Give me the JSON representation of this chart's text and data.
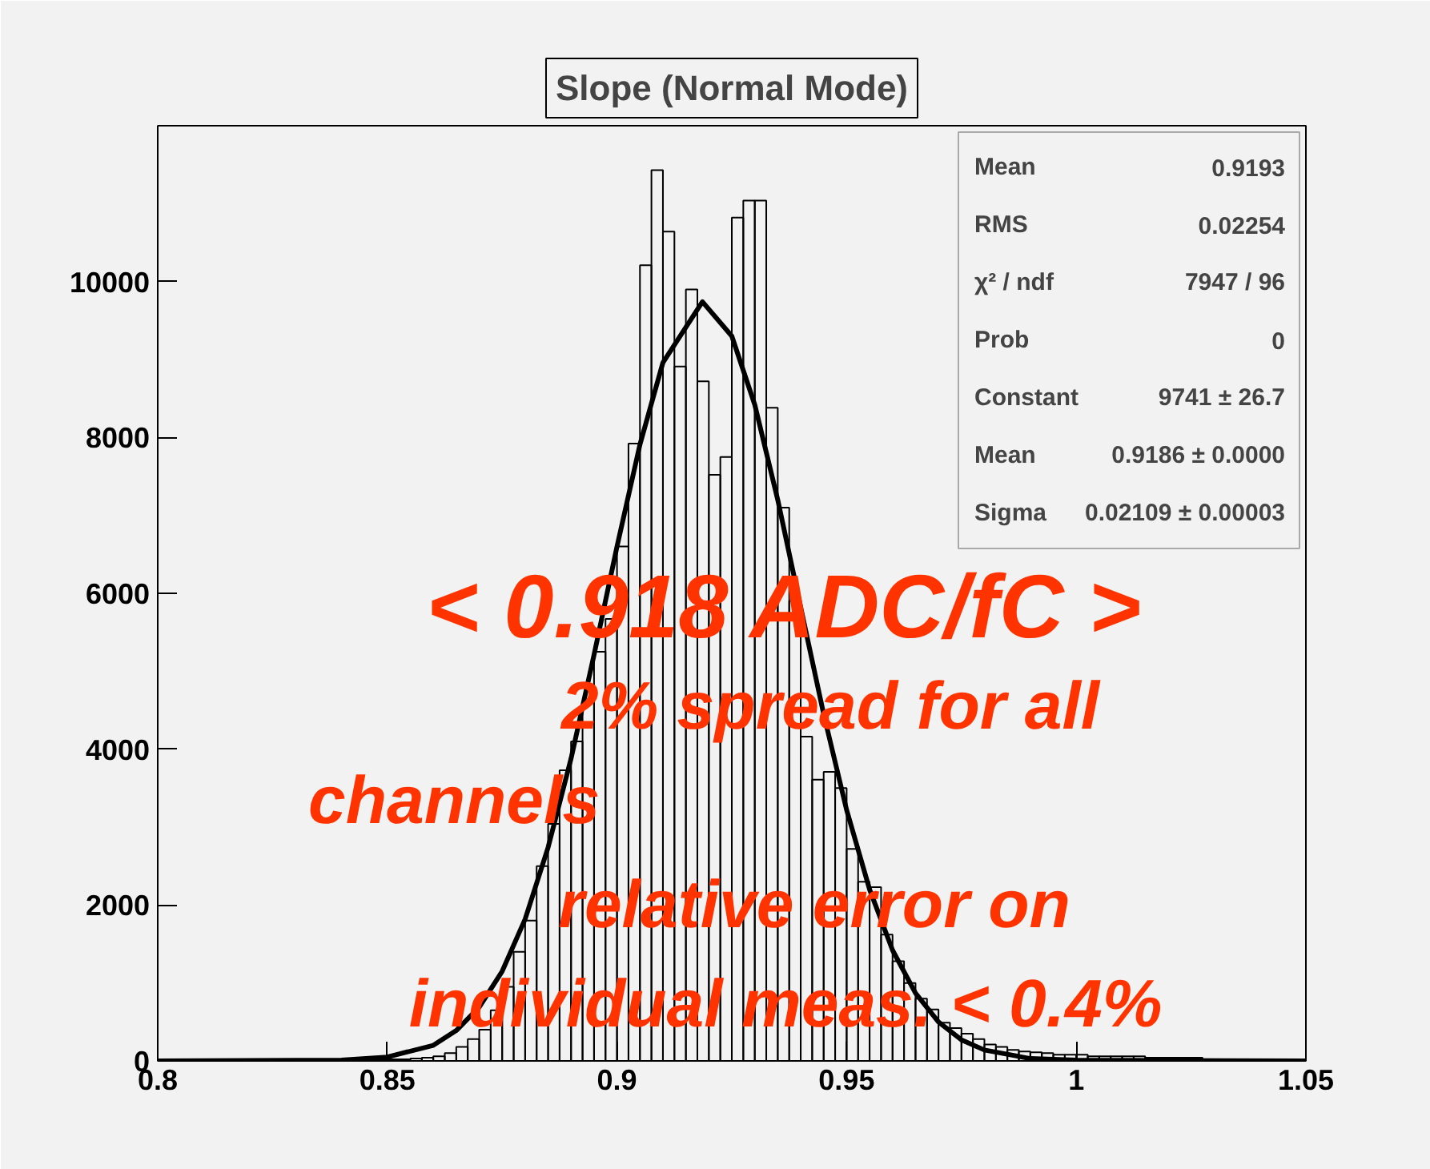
{
  "chart_data": {
    "type": "histogram",
    "title": "Slope (Normal Mode)",
    "bins": [
      0.8,
      0.8025,
      0.805,
      0.8075,
      0.81,
      0.8125,
      0.815,
      0.8175,
      0.82,
      0.8225,
      0.825,
      0.8275,
      0.83,
      0.8325,
      0.835,
      0.8375,
      0.84,
      0.8425,
      0.845,
      0.8475,
      0.85,
      0.8525,
      0.855,
      0.8575,
      0.86,
      0.8625,
      0.865,
      0.8675,
      0.87,
      0.8725,
      0.875,
      0.8775,
      0.88,
      0.8825,
      0.885,
      0.8875,
      0.89,
      0.8925,
      0.895,
      0.8975,
      0.9,
      0.9025,
      0.905,
      0.9075,
      0.91,
      0.9125,
      0.915,
      0.9175,
      0.92,
      0.9225,
      0.925,
      0.9275,
      0.93,
      0.9325,
      0.935,
      0.9375,
      0.94,
      0.9425,
      0.945,
      0.9475,
      0.95,
      0.9525,
      0.955,
      0.9575,
      0.96,
      0.9625,
      0.965,
      0.9675,
      0.97,
      0.9725,
      0.975,
      0.9775,
      0.98,
      0.9825,
      0.985,
      0.9875,
      0.99,
      0.9925,
      0.995,
      0.9975,
      1.0,
      1.0025,
      1.005,
      1.0075,
      1.01,
      1.0125,
      1.015,
      1.0175,
      1.02,
      1.0225,
      1.025,
      1.0275,
      1.03,
      1.0325,
      1.035,
      1.0375,
      1.04,
      1.0425,
      1.045,
      1.0475,
      1.05
    ],
    "values": [
      0,
      0,
      0,
      0,
      0,
      0,
      0,
      0,
      0,
      0,
      0,
      0,
      0,
      0,
      0,
      10,
      10,
      10,
      10,
      10,
      20,
      20,
      30,
      40,
      60,
      100,
      180,
      280,
      400,
      650,
      950,
      1400,
      1800,
      2500,
      3040,
      3730,
      4100,
      4600,
      5250,
      5670,
      6600,
      7920,
      10210,
      11430,
      10640,
      8910,
      9900,
      8720,
      7520,
      7750,
      10820,
      11040,
      11040,
      8380,
      7100,
      5900,
      4160,
      3610,
      3710,
      3500,
      2720,
      2300,
      2230,
      1620,
      1280,
      1000,
      800,
      660,
      490,
      420,
      350,
      280,
      210,
      180,
      140,
      120,
      110,
      100,
      80,
      80,
      80,
      60,
      60,
      60,
      60,
      60,
      40,
      40,
      40,
      40,
      40,
      20,
      20,
      20,
      20,
      20,
      20,
      20,
      20,
      20
    ],
    "color": "#000000",
    "series": [
      {
        "type": "line",
        "color": "#000000",
        "x": [
          0.8,
          0.84,
          0.85,
          0.86,
          0.865,
          0.87,
          0.875,
          0.88,
          0.885,
          0.89,
          0.895,
          0.9,
          0.905,
          0.91,
          0.9186,
          0.925,
          0.93,
          0.935,
          0.94,
          0.945,
          0.95,
          0.955,
          0.96,
          0.965,
          0.97,
          0.975,
          0.98,
          0.99,
          1.0,
          1.05
        ],
        "values": [
          0,
          10,
          50,
          200,
          390,
          690,
          1150,
          1820,
          2740,
          3880,
          5210,
          6600,
          7910,
          8960,
          9741,
          9300,
          8420,
          7200,
          5820,
          4450,
          3220,
          2200,
          1420,
          870,
          500,
          270,
          140,
          30,
          10,
          0
        ]
      }
    ],
    "xlim": [
      0.8,
      1.05
    ],
    "ylim": [
      0,
      12000
    ],
    "xticks": [
      0.8,
      0.85,
      0.9,
      0.95,
      1,
      1.05
    ],
    "yticks": [
      0,
      2000,
      4000,
      6000,
      8000,
      10000
    ],
    "grid": false,
    "annotations": [
      "Mean",
      "0.9193",
      "RMS",
      "0.02254",
      "χ² / ndf",
      "7947 / 96",
      "Prob",
      "0",
      "Constant",
      "9741 ± 26.7",
      "Mean",
      "0.9186 ± 0.0000",
      "Sigma",
      "0.02109 ± 0.00003",
      "< 0.918 ADC/fC >",
      "2% spread for all",
      "channels",
      "relative error on",
      "individual meas. < 0.4%"
    ]
  }
}
